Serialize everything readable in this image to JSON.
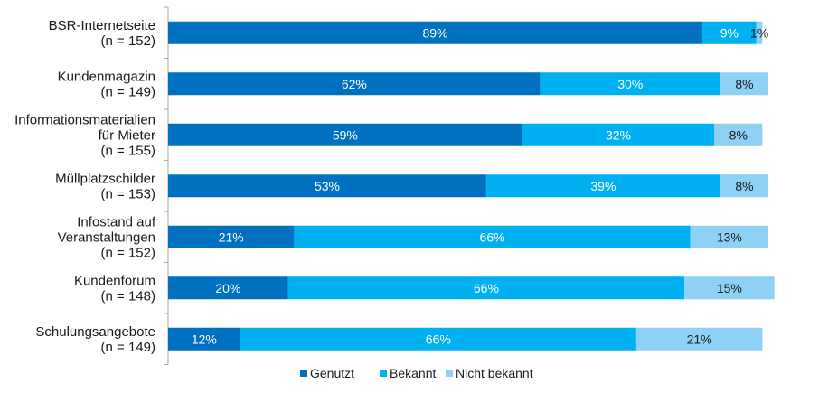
{
  "chart_data": {
    "type": "bar",
    "orientation": "horizontal",
    "stacked": "percent",
    "categories": [
      [
        "BSR-Internetseite",
        "(n = 152)"
      ],
      [
        "Kundenmagazin",
        "(n = 149)"
      ],
      [
        "Informationsmaterialien",
        "für Mieter",
        "(n = 155)"
      ],
      [
        "Müllplatzschilder",
        "(n = 153)"
      ],
      [
        "Infostand auf",
        "Veranstaltungen",
        "(n = 152)"
      ],
      [
        "Kundenforum",
        "(n = 148)"
      ],
      [
        "Schulungsangebote",
        "(n = 149)"
      ]
    ],
    "series": [
      {
        "name": "Genutzt",
        "color": "#0070c0",
        "label_color": "#ffffff",
        "values": [
          89,
          62,
          59,
          53,
          21,
          20,
          12
        ]
      },
      {
        "name": "Bekannt",
        "color": "#00b0f0",
        "label_color": "#ffffff",
        "values": [
          9,
          30,
          32,
          39,
          66,
          66,
          66
        ]
      },
      {
        "name": "Nicht bekannt",
        "color": "#8fd0f5",
        "label_color": "#1a1a1a",
        "values": [
          1,
          8,
          8,
          8,
          13,
          15,
          21
        ]
      }
    ],
    "value_suffix": "%",
    "xlim": [
      0,
      100
    ],
    "grid": false,
    "legend_position": "bottom"
  }
}
